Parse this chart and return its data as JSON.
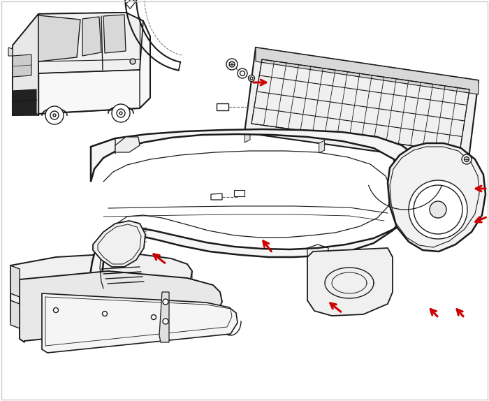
{
  "background_color": "#ffffff",
  "border_color": "#cccccc",
  "line_color": "#1a1a1a",
  "arrow_color": "#cc0000",
  "fig_width": 7.0,
  "fig_height": 5.74,
  "dpi": 100,
  "car_color": "#111111",
  "part_lw": 1.3,
  "arrow_lw": 2.2
}
